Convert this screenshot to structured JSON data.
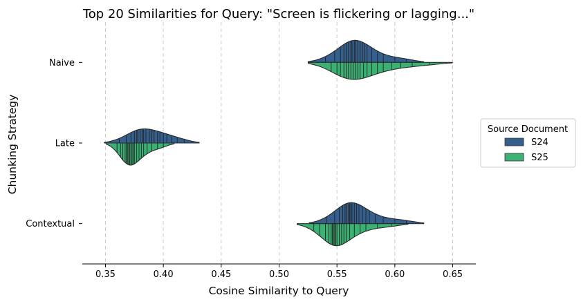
{
  "chart_data": {
    "type": "split-violin",
    "title": "Top 20 Similarities for Query: \"Screen is flickering or lagging...\"",
    "xlabel": "Cosine Similarity to Query",
    "ylabel": "Chunking Strategy",
    "xlim": [
      0.33,
      0.67
    ],
    "xticks": [
      0.35,
      0.4,
      0.45,
      0.5,
      0.55,
      0.6,
      0.65
    ],
    "xtick_labels": [
      "0.35",
      "0.40",
      "0.45",
      "0.50",
      "0.55",
      "0.60",
      "0.65"
    ],
    "grid": "vertical-dashed",
    "categories": [
      "Naive",
      "Late",
      "Contextual"
    ],
    "legend": {
      "title": "Source Document",
      "position": "right",
      "entries": [
        {
          "name": "S24",
          "color": "#355f8d"
        },
        {
          "name": "S25",
          "color": "#3bb174"
        }
      ]
    },
    "series": [
      {
        "name": "S24",
        "color": "#355f8d",
        "values": {
          "Naive": [
            0.54,
            0.548,
            0.553,
            0.556,
            0.558,
            0.56,
            0.562,
            0.563,
            0.565,
            0.566,
            0.568,
            0.57,
            0.572,
            0.574,
            0.576,
            0.58,
            0.585,
            0.59,
            0.6,
            0.61
          ],
          "Late": [
            0.362,
            0.368,
            0.372,
            0.375,
            0.377,
            0.378,
            0.38,
            0.382,
            0.383,
            0.385,
            0.388,
            0.39,
            0.392,
            0.395,
            0.397,
            0.4,
            0.403,
            0.407,
            0.412,
            0.418
          ],
          "Contextual": [
            0.541,
            0.548,
            0.552,
            0.555,
            0.557,
            0.558,
            0.56,
            0.561,
            0.562,
            0.563,
            0.565,
            0.567,
            0.569,
            0.572,
            0.575,
            0.578,
            0.583,
            0.59,
            0.6,
            0.61
          ]
        }
      },
      {
        "name": "S25",
        "color": "#3bb174",
        "values": {
          "Naive": [
            0.545,
            0.55,
            0.553,
            0.556,
            0.558,
            0.56,
            0.562,
            0.564,
            0.566,
            0.568,
            0.57,
            0.573,
            0.576,
            0.58,
            0.585,
            0.59,
            0.597,
            0.605,
            0.615,
            0.63
          ],
          "Late": [
            0.36,
            0.363,
            0.365,
            0.367,
            0.368,
            0.369,
            0.37,
            0.371,
            0.372,
            0.373,
            0.374,
            0.375,
            0.377,
            0.379,
            0.381,
            0.383,
            0.386,
            0.39,
            0.395,
            0.4
          ],
          "Contextual": [
            0.53,
            0.535,
            0.54,
            0.543,
            0.545,
            0.546,
            0.547,
            0.548,
            0.549,
            0.55,
            0.552,
            0.554,
            0.556,
            0.558,
            0.561,
            0.565,
            0.57,
            0.575,
            0.585,
            0.597
          ]
        }
      }
    ]
  }
}
